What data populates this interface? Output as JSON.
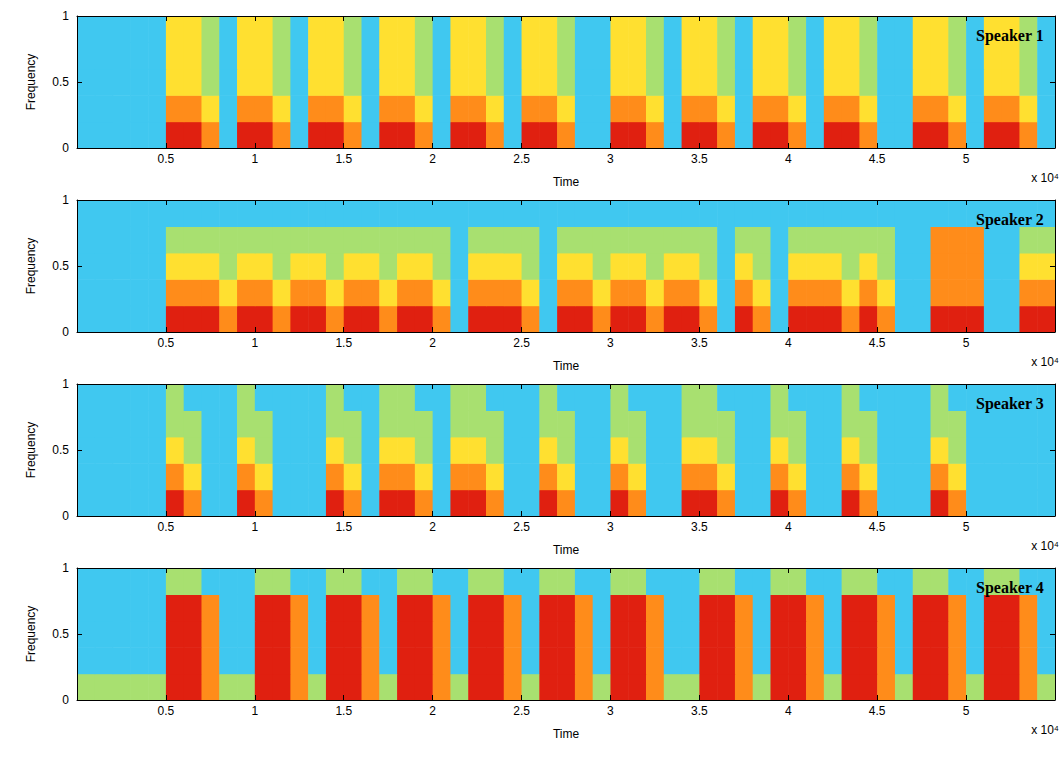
{
  "chart_data": {
    "type": "heatmap",
    "x_label": "Time",
    "y_label": "Frequency",
    "x_scale_label": "x 10⁴",
    "xlim": [
      0,
      5.5
    ],
    "ylim": [
      0,
      1
    ],
    "xticks": [
      0.5,
      1,
      1.5,
      2,
      2.5,
      3,
      3.5,
      4,
      4.5,
      5
    ],
    "yticks": [
      0,
      0.5,
      1
    ],
    "x": [
      0.05,
      0.15,
      0.25,
      0.35,
      0.45,
      0.55,
      0.65,
      0.75,
      0.85,
      0.95,
      1.05,
      1.15,
      1.25,
      1.35,
      1.45,
      1.55,
      1.65,
      1.75,
      1.85,
      1.95,
      2.05,
      2.15,
      2.25,
      2.35,
      2.45,
      2.55,
      2.65,
      2.75,
      2.85,
      2.95,
      3.05,
      3.15,
      3.25,
      3.35,
      3.45,
      3.55,
      3.65,
      3.75,
      3.85,
      3.95,
      4.05,
      4.15,
      4.25,
      4.35,
      4.45,
      4.55,
      4.65,
      4.75,
      4.85,
      4.95,
      5.05,
      5.15,
      5.25,
      5.35,
      5.45
    ],
    "y": [
      0.1,
      0.3,
      0.5,
      0.7,
      0.9
    ],
    "color_range": [
      0,
      5
    ],
    "panels": [
      {
        "title": "Speaker 1",
        "values": [
          [
            1,
            1,
            1,
            1,
            1,
            5,
            5,
            4,
            1,
            5,
            5,
            4,
            1,
            5,
            5,
            4,
            1,
            5,
            5,
            4,
            1,
            5,
            5,
            4,
            1,
            5,
            5,
            4,
            1,
            1,
            5,
            5,
            4,
            1,
            5,
            5,
            4,
            1,
            5,
            5,
            4,
            1,
            5,
            5,
            4,
            1,
            1,
            5,
            5,
            4,
            1,
            5,
            5,
            4,
            1
          ],
          [
            1,
            1,
            1,
            1,
            1,
            4,
            4,
            3,
            1,
            4,
            4,
            3,
            1,
            4,
            4,
            3,
            1,
            4,
            4,
            3,
            1,
            4,
            4,
            3,
            1,
            4,
            4,
            3,
            1,
            1,
            4,
            4,
            3,
            1,
            4,
            4,
            3,
            1,
            4,
            4,
            3,
            1,
            4,
            4,
            3,
            1,
            1,
            4,
            4,
            3,
            1,
            4,
            4,
            3,
            1
          ],
          [
            1,
            1,
            1,
            1,
            1,
            3,
            3,
            2,
            1,
            3,
            3,
            2,
            1,
            3,
            3,
            2,
            1,
            3,
            3,
            2,
            1,
            3,
            3,
            2,
            1,
            3,
            3,
            2,
            1,
            1,
            3,
            3,
            2,
            1,
            3,
            3,
            2,
            1,
            3,
            3,
            2,
            1,
            3,
            3,
            2,
            1,
            1,
            3,
            3,
            2,
            1,
            3,
            3,
            2,
            1
          ],
          [
            1,
            1,
            1,
            1,
            1,
            3,
            3,
            2,
            1,
            3,
            3,
            2,
            1,
            3,
            3,
            2,
            1,
            3,
            3,
            2,
            1,
            3,
            3,
            2,
            1,
            3,
            3,
            2,
            1,
            1,
            3,
            3,
            2,
            1,
            3,
            3,
            2,
            1,
            3,
            3,
            2,
            1,
            3,
            3,
            2,
            1,
            1,
            3,
            3,
            2,
            1,
            3,
            3,
            2,
            1
          ],
          [
            1,
            1,
            1,
            1,
            1,
            3,
            3,
            2,
            1,
            3,
            3,
            2,
            1,
            3,
            3,
            2,
            1,
            3,
            3,
            2,
            1,
            3,
            3,
            2,
            1,
            3,
            3,
            2,
            1,
            1,
            3,
            3,
            2,
            1,
            3,
            3,
            2,
            1,
            3,
            3,
            2,
            1,
            3,
            3,
            2,
            1,
            1,
            3,
            3,
            2,
            1,
            3,
            3,
            2,
            1
          ]
        ]
      },
      {
        "title": "Speaker 2",
        "values": [
          [
            1,
            1,
            1,
            1,
            1,
            5,
            5,
            5,
            4,
            5,
            5,
            4,
            5,
            5,
            4,
            5,
            5,
            4,
            5,
            5,
            4,
            1,
            5,
            5,
            5,
            4,
            1,
            5,
            5,
            4,
            5,
            5,
            4,
            5,
            5,
            4,
            1,
            5,
            4,
            1,
            5,
            5,
            5,
            4,
            5,
            4,
            1,
            1,
            5,
            5,
            5,
            1,
            1,
            5,
            5
          ],
          [
            1,
            1,
            1,
            1,
            1,
            4,
            4,
            4,
            3,
            4,
            4,
            3,
            4,
            4,
            3,
            4,
            4,
            3,
            4,
            4,
            3,
            1,
            4,
            4,
            4,
            3,
            1,
            4,
            4,
            3,
            4,
            4,
            3,
            4,
            4,
            3,
            1,
            4,
            3,
            1,
            4,
            4,
            4,
            3,
            4,
            3,
            1,
            1,
            4,
            4,
            4,
            1,
            1,
            4,
            4
          ],
          [
            1,
            1,
            1,
            1,
            1,
            3,
            3,
            3,
            2,
            3,
            3,
            2,
            3,
            3,
            2,
            3,
            3,
            2,
            3,
            3,
            2,
            1,
            3,
            3,
            3,
            2,
            1,
            3,
            3,
            2,
            3,
            3,
            2,
            3,
            3,
            2,
            1,
            3,
            2,
            1,
            3,
            3,
            3,
            2,
            3,
            2,
            1,
            1,
            4,
            4,
            4,
            1,
            1,
            3,
            3
          ],
          [
            1,
            1,
            1,
            1,
            1,
            2,
            2,
            2,
            2,
            2,
            2,
            2,
            2,
            2,
            2,
            2,
            2,
            2,
            2,
            2,
            2,
            1,
            2,
            2,
            2,
            2,
            1,
            2,
            2,
            2,
            2,
            2,
            2,
            2,
            2,
            2,
            1,
            2,
            2,
            1,
            2,
            2,
            2,
            2,
            2,
            2,
            1,
            1,
            4,
            4,
            4,
            1,
            1,
            2,
            2
          ],
          [
            1,
            1,
            1,
            1,
            1,
            1,
            1,
            1,
            1,
            1,
            1,
            1,
            1,
            1,
            1,
            1,
            1,
            1,
            1,
            1,
            1,
            1,
            1,
            1,
            1,
            1,
            1,
            1,
            1,
            1,
            1,
            1,
            1,
            1,
            1,
            1,
            1,
            1,
            1,
            1,
            1,
            1,
            1,
            1,
            1,
            1,
            1,
            1,
            1,
            1,
            1,
            1,
            1,
            1,
            1
          ]
        ]
      },
      {
        "title": "Speaker 3",
        "values": [
          [
            1,
            1,
            1,
            1,
            1,
            5,
            4,
            1,
            1,
            5,
            4,
            1,
            1,
            1,
            5,
            4,
            1,
            5,
            5,
            4,
            1,
            5,
            5,
            4,
            1,
            1,
            5,
            4,
            1,
            1,
            5,
            4,
            1,
            1,
            5,
            5,
            4,
            1,
            1,
            5,
            4,
            1,
            1,
            5,
            4,
            1,
            1,
            1,
            5,
            4,
            1,
            1,
            1,
            1,
            1
          ],
          [
            1,
            1,
            1,
            1,
            1,
            4,
            3,
            1,
            1,
            4,
            3,
            1,
            1,
            1,
            4,
            3,
            1,
            4,
            4,
            3,
            1,
            4,
            4,
            3,
            1,
            1,
            4,
            3,
            1,
            1,
            4,
            3,
            1,
            1,
            4,
            4,
            3,
            1,
            1,
            4,
            3,
            1,
            1,
            4,
            3,
            1,
            1,
            1,
            4,
            3,
            1,
            1,
            1,
            1,
            1
          ],
          [
            1,
            1,
            1,
            1,
            1,
            3,
            2,
            1,
            1,
            3,
            2,
            1,
            1,
            1,
            3,
            2,
            1,
            3,
            3,
            2,
            1,
            3,
            3,
            2,
            1,
            1,
            3,
            2,
            1,
            1,
            3,
            2,
            1,
            1,
            3,
            3,
            2,
            1,
            1,
            3,
            2,
            1,
            1,
            3,
            2,
            1,
            1,
            1,
            3,
            2,
            1,
            1,
            1,
            1,
            1
          ],
          [
            1,
            1,
            1,
            1,
            1,
            2,
            2,
            1,
            1,
            2,
            2,
            1,
            1,
            1,
            2,
            2,
            1,
            2,
            2,
            2,
            1,
            2,
            2,
            2,
            1,
            1,
            2,
            2,
            1,
            1,
            2,
            2,
            1,
            1,
            2,
            2,
            2,
            1,
            1,
            2,
            2,
            1,
            1,
            2,
            2,
            1,
            1,
            1,
            2,
            2,
            1,
            1,
            1,
            1,
            1
          ],
          [
            1,
            1,
            1,
            1,
            1,
            2,
            1,
            1,
            1,
            2,
            1,
            1,
            1,
            1,
            2,
            1,
            1,
            2,
            2,
            1,
            1,
            2,
            2,
            1,
            1,
            1,
            2,
            1,
            1,
            1,
            2,
            1,
            1,
            1,
            2,
            2,
            1,
            1,
            1,
            2,
            1,
            1,
            1,
            2,
            1,
            1,
            1,
            1,
            2,
            1,
            1,
            1,
            1,
            1,
            1
          ]
        ]
      },
      {
        "title": "Speaker 4",
        "values": [
          [
            2,
            2,
            2,
            2,
            2,
            5,
            5,
            4,
            2,
            2,
            5,
            5,
            4,
            2,
            5,
            5,
            4,
            2,
            5,
            5,
            4,
            2,
            5,
            5,
            4,
            2,
            5,
            5,
            4,
            2,
            5,
            5,
            4,
            2,
            2,
            5,
            5,
            4,
            2,
            5,
            5,
            4,
            2,
            5,
            5,
            4,
            2,
            5,
            5,
            4,
            2,
            5,
            5,
            4,
            2
          ],
          [
            1,
            1,
            1,
            1,
            1,
            5,
            5,
            4,
            1,
            1,
            5,
            5,
            4,
            1,
            5,
            5,
            4,
            1,
            5,
            5,
            4,
            1,
            5,
            5,
            4,
            1,
            5,
            5,
            4,
            1,
            5,
            5,
            4,
            1,
            1,
            5,
            5,
            4,
            1,
            5,
            5,
            4,
            1,
            5,
            5,
            4,
            1,
            5,
            5,
            4,
            1,
            5,
            5,
            4,
            1
          ],
          [
            1,
            1,
            1,
            1,
            1,
            5,
            5,
            4,
            1,
            1,
            5,
            5,
            4,
            1,
            5,
            5,
            4,
            1,
            5,
            5,
            4,
            1,
            5,
            5,
            4,
            1,
            5,
            5,
            4,
            1,
            5,
            5,
            4,
            1,
            1,
            5,
            5,
            4,
            1,
            5,
            5,
            4,
            1,
            5,
            5,
            4,
            1,
            5,
            5,
            4,
            1,
            5,
            5,
            4,
            1
          ],
          [
            1,
            1,
            1,
            1,
            1,
            5,
            5,
            4,
            1,
            1,
            5,
            5,
            4,
            1,
            5,
            5,
            4,
            1,
            5,
            5,
            4,
            1,
            5,
            5,
            4,
            1,
            5,
            5,
            4,
            1,
            5,
            5,
            4,
            1,
            1,
            5,
            5,
            4,
            1,
            5,
            5,
            4,
            1,
            5,
            5,
            4,
            1,
            5,
            5,
            4,
            1,
            5,
            5,
            4,
            1
          ],
          [
            1,
            1,
            1,
            1,
            1,
            2,
            2,
            1,
            1,
            1,
            2,
            2,
            1,
            1,
            2,
            2,
            1,
            1,
            2,
            2,
            1,
            1,
            2,
            2,
            1,
            1,
            2,
            2,
            1,
            1,
            2,
            2,
            1,
            1,
            1,
            2,
            2,
            1,
            1,
            2,
            2,
            1,
            1,
            2,
            2,
            1,
            1,
            2,
            2,
            1,
            1,
            2,
            2,
            1,
            1
          ]
        ]
      }
    ]
  }
}
